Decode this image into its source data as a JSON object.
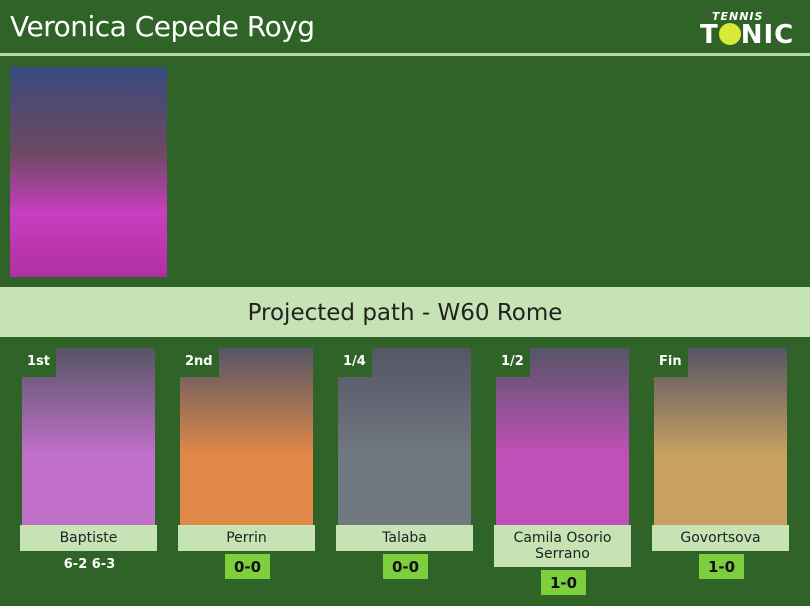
{
  "header": {
    "title": "Veronica Cepede Royg",
    "logo_top": "TENNIS",
    "logo_bottom_left": "T",
    "logo_bottom_right": "NIC"
  },
  "banner": {
    "text": "Projected path - W60 Rome"
  },
  "path": [
    {
      "round": "1st",
      "name": "Baptiste",
      "result": "6-2 6-3",
      "photo": "#c070c8"
    },
    {
      "round": "2nd",
      "name": "Perrin",
      "score": "0-0",
      "photo": "#e08848"
    },
    {
      "round": "1/4",
      "name": "Talaba",
      "score": "0-0",
      "photo": "#707880"
    },
    {
      "round": "1/2",
      "name": "Camila Osorio Serrano",
      "score": "1-0",
      "photo": "#c050b8"
    },
    {
      "round": "Fin",
      "name": "Govortsova",
      "score": "1-0",
      "photo": "#c8a060"
    }
  ]
}
